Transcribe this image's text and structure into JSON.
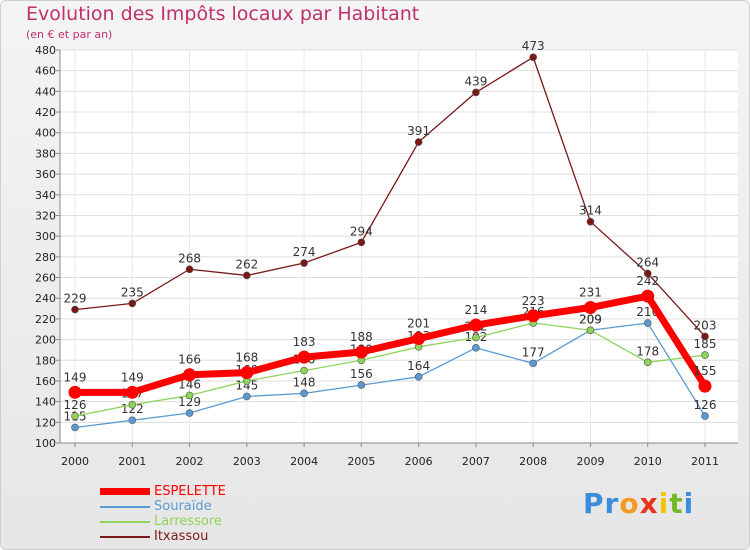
{
  "title": "Evolution des Impôts locaux par Habitant",
  "subtitle": "(en € et par an)",
  "logo": {
    "letters": [
      "P",
      "r",
      "o",
      "x",
      "i",
      "t",
      "i"
    ],
    "colors": [
      "#3b8ddb",
      "#3b8ddb",
      "#f39a22",
      "#e8331f",
      "#f5c400",
      "#77b82a",
      "#3b8ddb"
    ]
  },
  "chart_data": {
    "type": "line",
    "x": [
      "2000",
      "2001",
      "2002",
      "2003",
      "2004",
      "2005",
      "2006",
      "2007",
      "2008",
      "2009",
      "2010",
      "2011"
    ],
    "ylim": [
      100,
      480
    ],
    "yticks": [
      100,
      120,
      140,
      160,
      180,
      200,
      220,
      240,
      260,
      280,
      300,
      320,
      340,
      360,
      380,
      400,
      420,
      440,
      460,
      480
    ],
    "grid": true,
    "legend_position": "bottom-left",
    "series": [
      {
        "name": "ESPELETTE",
        "values": [
          149,
          149,
          166,
          168,
          183,
          188,
          201,
          214,
          223,
          231,
          242,
          155
        ],
        "color": "#ff0000",
        "label_color": "#ff0000",
        "emphasis": true
      },
      {
        "name": "Souraïde",
        "values": [
          115,
          122,
          129,
          145,
          148,
          156,
          164,
          192,
          177,
          209,
          216,
          126
        ],
        "color": "#5a9ad2",
        "label_color": "#5a9ad2"
      },
      {
        "name": "Larressore",
        "values": [
          126,
          137,
          146,
          160,
          170,
          180,
          193,
          202,
          216,
          209,
          178,
          185
        ],
        "color": "#8fd45a",
        "label_color": "#8fd45a"
      },
      {
        "name": "Itxassou",
        "values": [
          229,
          235,
          268,
          262,
          274,
          294,
          391,
          439,
          473,
          314,
          264,
          203
        ],
        "color": "#7a1818",
        "label_color": "#7a1818"
      }
    ]
  }
}
